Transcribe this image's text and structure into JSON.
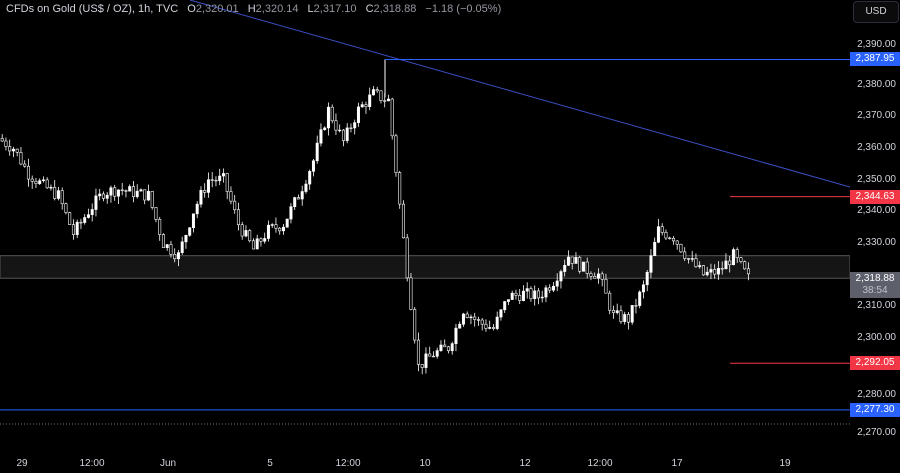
{
  "header": {
    "symbol": "CFDs on Gold (US$ / OZ), 1h, TVC",
    "o_label": "O",
    "o": "2,320.01",
    "h_label": "H",
    "h": "2,320.14",
    "l_label": "L",
    "l": "2,317.10",
    "c_label": "C",
    "c": "2,318.88",
    "change": "−1.18 (−0.05%)"
  },
  "currency": "USD",
  "price_axis": {
    "ticks": [
      "2,390.00",
      "2,380.00",
      "2,370.00",
      "2,360.00",
      "2,350.00",
      "2,340.00",
      "2,330.00",
      "2,310.00",
      "2,300.00",
      "2,280.00",
      "2,270.00"
    ]
  },
  "time_axis": {
    "labels": [
      "29",
      "12:00",
      "Jun",
      "5",
      "12:00",
      "10",
      "12",
      "12:00",
      "17",
      "19"
    ]
  },
  "levels": {
    "top": {
      "label": "2,387.95",
      "value": 2387.95,
      "color": "#2962ff"
    },
    "resist": {
      "label": "2,344.63",
      "value": 2344.63,
      "color": "#f23645"
    },
    "current": {
      "label": "2,318.88",
      "value": 2318.88,
      "countdown": "38:54",
      "color": "#5d606b"
    },
    "support": {
      "label": "2,292.05",
      "value": 2292.05,
      "color": "#f23645"
    },
    "bottom": {
      "label": "2,277.30",
      "value": 2277.3,
      "color": "#2962ff"
    }
  },
  "zone": {
    "low": 2318.88,
    "high": 2326.0
  },
  "price_path": [
    2363,
    2360,
    2352,
    2348,
    2345,
    2333,
    2340,
    2346,
    2347,
    2346,
    2345,
    2330,
    2326,
    2340,
    2350,
    2350,
    2336,
    2328,
    2334,
    2336,
    2345,
    2356,
    2372,
    2362,
    2372,
    2377,
    2375,
    2331,
    2291,
    2295,
    2297,
    2309,
    2305,
    2303,
    2313,
    2314,
    2313,
    2318,
    2326,
    2322,
    2320,
    2307,
    2306,
    2316,
    2334,
    2332,
    2325,
    2320,
    2321,
    2326,
    2318.88
  ]
}
